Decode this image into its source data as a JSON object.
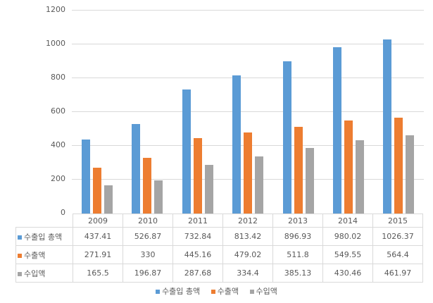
{
  "chart_data": {
    "type": "bar",
    "title": "",
    "xlabel": "",
    "ylabel": "",
    "ylim": [
      0,
      1200
    ],
    "yticks": [
      0,
      200,
      400,
      600,
      800,
      1000,
      1200
    ],
    "grid": true,
    "legend_position": "bottom",
    "data_table": true,
    "categories": [
      "2009",
      "2010",
      "2011",
      "2012",
      "2013",
      "2014",
      "2015"
    ],
    "series": [
      {
        "name": "수출입 총액",
        "color": "#5b9bd5",
        "values": [
          437.41,
          526.87,
          732.84,
          813.42,
          896.93,
          980.02,
          1026.37
        ]
      },
      {
        "name": "수출액",
        "color": "#ed7d31",
        "values": [
          271.91,
          330,
          445.16,
          479.02,
          511.8,
          549.55,
          564.4
        ]
      },
      {
        "name": "수입액",
        "color": "#a5a5a5",
        "values": [
          165.5,
          196.87,
          287.68,
          334.4,
          385.13,
          430.46,
          461.97
        ]
      }
    ]
  },
  "table": {
    "years": [
      "2009",
      "2010",
      "2011",
      "2012",
      "2013",
      "2014",
      "2015"
    ],
    "rows": [
      {
        "label": "수출입 총액",
        "cells": [
          "437.41",
          "526.87",
          "732.84",
          "813.42",
          "896.93",
          "980.02",
          "1026.37"
        ]
      },
      {
        "label": "수출액",
        "cells": [
          "271.91",
          "330",
          "445.16",
          "479.02",
          "511.8",
          "549.55",
          "564.4"
        ]
      },
      {
        "label": "수입액",
        "cells": [
          "165.5",
          "196.87",
          "287.68",
          "334.4",
          "385.13",
          "430.46",
          "461.97"
        ]
      }
    ]
  },
  "yaxis": {
    "labels": [
      "1200",
      "1000",
      "800",
      "600",
      "400",
      "200",
      "0"
    ]
  },
  "legend": [
    "수출입 총액",
    "수출액",
    "수입액"
  ]
}
